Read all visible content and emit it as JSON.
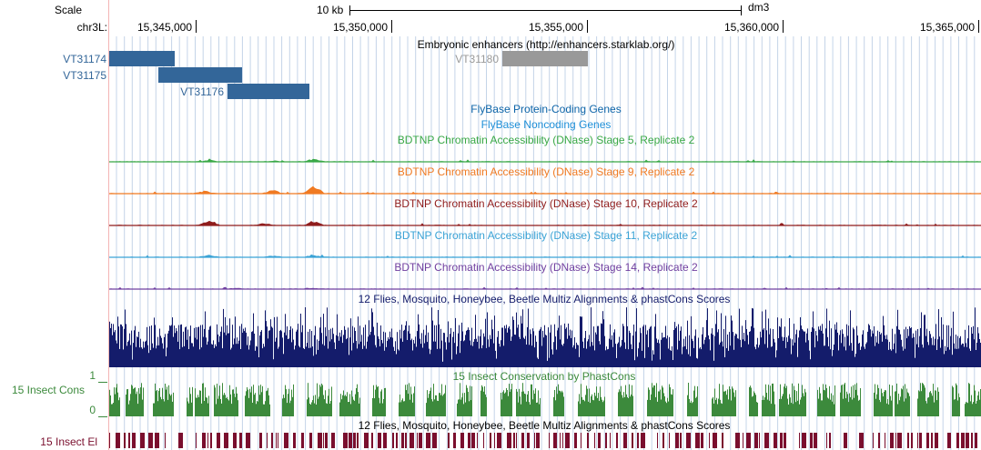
{
  "ruler": {
    "scale_label": "Scale",
    "chrom_label": "chr3L:",
    "scale_bar_label": "10 kb",
    "assembly": "dm3",
    "positions": [
      "15,345,000",
      "15,350,000",
      "15,355,000",
      "15,360,000",
      "15,365,000"
    ]
  },
  "enhancers": {
    "title": "Embryonic enhancers (http://enhancers.starklab.org/)",
    "items": [
      {
        "name": "VT31174",
        "color": "#336699"
      },
      {
        "name": "VT31175",
        "color": "#336699"
      },
      {
        "name": "VT31176",
        "color": "#336699"
      },
      {
        "name": "VT31180",
        "color": "#999999"
      }
    ]
  },
  "tracks": {
    "flybase_coding": {
      "title": "FlyBase Protein-Coding Genes",
      "color": "#0c64a8"
    },
    "flybase_noncoding": {
      "title": "FlyBase Noncoding Genes",
      "color": "#1e8fd8"
    },
    "dnase": [
      {
        "title": "BDTNP Chromatin Accessibility (DNase) Stage 5, Replicate 2",
        "color": "#39a846"
      },
      {
        "title": "BDTNP Chromatin Accessibility (DNase) Stage 9, Replicate 2",
        "color": "#f07a22"
      },
      {
        "title": "BDTNP Chromatin Accessibility (DNase) Stage 10, Replicate 2",
        "color": "#8f1c1c"
      },
      {
        "title": "BDTNP Chromatin Accessibility (DNase) Stage 11, Replicate 2",
        "color": "#3aa3d6"
      },
      {
        "title": "BDTNP Chromatin Accessibility (DNase) Stage 14, Replicate 2",
        "color": "#7140a0"
      }
    ],
    "multiz": {
      "title": "12 Flies, Mosquito, Honeybee, Beetle Multiz Alignments & phastCons Scores",
      "color": "#141c6b"
    },
    "phastcons": {
      "title": "15 Insect Conservation by PhastCons",
      "side_label": "15 Insect Cons",
      "y_max": "1",
      "y_min": "0",
      "color": "#3c8a3c"
    },
    "elements": {
      "title": "12 Flies, Mosquito, Honeybee, Beetle Multiz Alignments & phastCons Scores",
      "side_label": "15 Insect El",
      "color": "#7a0f2e"
    }
  }
}
